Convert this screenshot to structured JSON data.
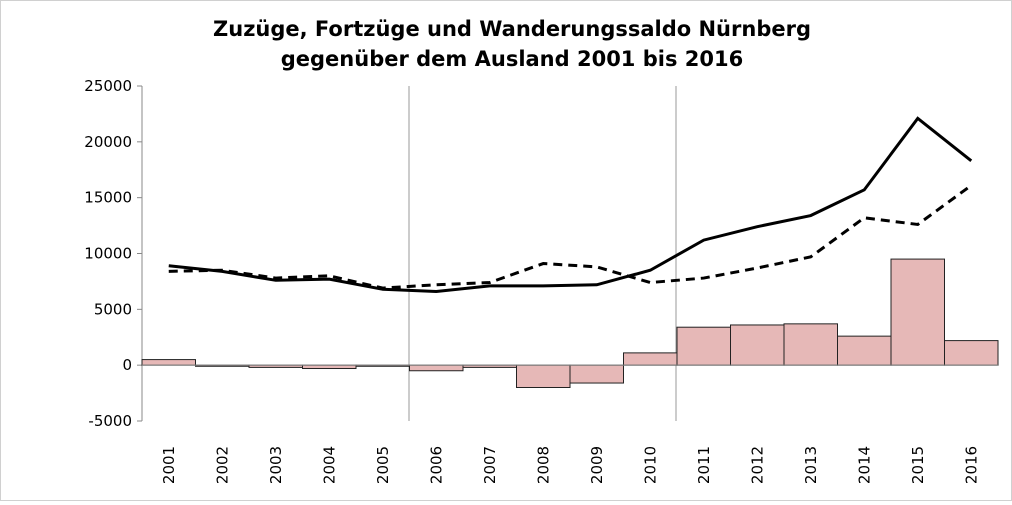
{
  "chart_data": {
    "type": "bar_line",
    "title": [
      "Zuzüge, Fortzüge und Wanderungssaldo Nürnberg",
      "gegenüber dem Ausland 2001 bis 2016"
    ],
    "categories": [
      "2001",
      "2002",
      "2003",
      "2004",
      "2005",
      "2006",
      "2007",
      "2008",
      "2009",
      "2010",
      "2011",
      "2012",
      "2013",
      "2014",
      "2015",
      "2016"
    ],
    "series": [
      {
        "type": "bar",
        "color": "#e6b8b7",
        "values": [
          500,
          -100,
          -200,
          -300,
          -100,
          -500,
          -200,
          -2000,
          -1600,
          1100,
          3400,
          3600,
          3700,
          2600,
          9500,
          2200
        ]
      },
      {
        "type": "line",
        "color": "#000000",
        "dash": false,
        "values": [
          8900,
          8400,
          7600,
          7700,
          6800,
          6600,
          7100,
          7100,
          7200,
          8500,
          11200,
          12400,
          13400,
          15700,
          22100,
          18300
        ]
      },
      {
        "type": "line",
        "color": "#000000",
        "dash": true,
        "values": [
          8400,
          8500,
          7800,
          8000,
          6900,
          7200,
          7400,
          9100,
          8800,
          7400,
          7800,
          8700,
          9700,
          13200,
          12600,
          16100
        ]
      }
    ],
    "ylim": [
      -5000,
      25000
    ],
    "yticks": [
      -5000,
      0,
      5000,
      10000,
      15000,
      20000,
      25000
    ]
  }
}
